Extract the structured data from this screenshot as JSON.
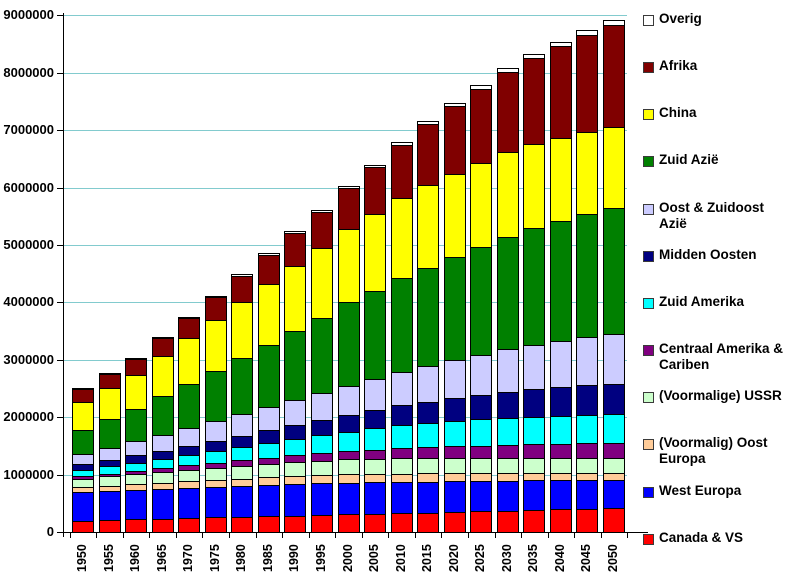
{
  "chart_data": {
    "type": "bar",
    "stacked": true,
    "title": "",
    "categories": [
      "1950",
      "1955",
      "1960",
      "1965",
      "1970",
      "1975",
      "1980",
      "1985",
      "1990",
      "1995",
      "2000",
      "2005",
      "2010",
      "2015",
      "2020",
      "2025",
      "2030",
      "2035",
      "2040",
      "2045",
      "2050"
    ],
    "y_axis": {
      "min": 0,
      "max": 9000000,
      "interval": 1000000,
      "ticks": [
        "0",
        "1000000",
        "2000000",
        "3000000",
        "4000000",
        "5000000",
        "6000000",
        "7000000",
        "8000000",
        "9000000"
      ]
    },
    "grid": {
      "show": true,
      "color": "#82CBCE"
    },
    "axis_color": "#000000",
    "bar_border_color": "#000000",
    "background": "#FFFFFF",
    "legend": {
      "position": "right",
      "items_top_to_bottom": [
        {
          "key": "overig",
          "label": "Overig"
        },
        {
          "key": "afrika",
          "label": "Afrika"
        },
        {
          "key": "china",
          "label": "China"
        },
        {
          "key": "zuid-azie",
          "label": "Zuid Azië"
        },
        {
          "key": "oost-zuidoost-azie",
          "label": "Oost & Zuidoost\nAzië"
        },
        {
          "key": "midden-oosten",
          "label": "Midden Oosten"
        },
        {
          "key": "zuid-amerika",
          "label": "Zuid Amerika"
        },
        {
          "key": "centraal-amerika-cariben",
          "label": "Centraal Amerika &\nCariben"
        },
        {
          "key": "voormalige-ussr",
          "label": "(Voormalige) USSR"
        },
        {
          "key": "voormalig-oost-europa",
          "label": "(Voormalig) Oost\nEuropa"
        },
        {
          "key": "west-europa",
          "label": "West Europa"
        },
        {
          "key": "canada-vs",
          "label": "Canada & VS"
        }
      ]
    },
    "series": [
      {
        "key": "canada-vs",
        "name": "Canada & VS",
        "color": "#FF0000",
        "values": [
          195000,
          207000,
          219000,
          231000,
          243000,
          254000,
          265000,
          276000,
          287000,
          300000,
          314000,
          321000,
          327000,
          339000,
          350000,
          361000,
          372000,
          383000,
          394000,
          404000,
          414000
        ]
      },
      {
        "key": "west-europa",
        "name": "West Europa",
        "color": "#0000FF",
        "values": [
          495000,
          503000,
          511000,
          519000,
          526000,
          532000,
          537000,
          541000,
          544000,
          546000,
          547000,
          545000,
          542000,
          538000,
          533000,
          528000,
          522000,
          516000,
          510000,
          503000,
          495000
        ]
      },
      {
        "key": "voormalig-oost-europa",
        "name": "(Voormalig) Oost Europa",
        "color": "#FFCC99",
        "values": [
          88000,
          96000,
          104000,
          111000,
          118000,
          124000,
          130000,
          135000,
          139000,
          143000,
          146000,
          148000,
          150000,
          148000,
          145000,
          141000,
          137000,
          132000,
          127000,
          122000,
          117000
        ]
      },
      {
        "key": "voormalige-ussr",
        "name": "(Voormalige) USSR",
        "color": "#CCFFCC",
        "values": [
          150000,
          163000,
          176000,
          189000,
          201000,
          213000,
          224000,
          234000,
          243000,
          251000,
          257000,
          261000,
          263000,
          264000,
          265000,
          265000,
          265000,
          265000,
          265000,
          264000,
          264000
        ]
      },
      {
        "key": "centraal-amerika-cariben",
        "name": "Centraal Amerika & Cariben",
        "color": "#800080",
        "values": [
          40000,
          47000,
          55000,
          64000,
          74000,
          85000,
          96000,
          108000,
          120000,
          133000,
          147000,
          161000,
          175000,
          188000,
          200000,
          211000,
          221000,
          231000,
          241000,
          251000,
          260000
        ]
      },
      {
        "key": "zuid-amerika",
        "name": "Zuid Amerika",
        "color": "#00FFFF",
        "values": [
          110000,
          126000,
          144000,
          164000,
          186000,
          209000,
          233000,
          258000,
          284000,
          310000,
          336000,
          369000,
          400000,
          420000,
          445000,
          462000,
          475000,
          483000,
          489000,
          494000,
          498000
        ]
      },
      {
        "key": "midden-oosten",
        "name": "Midden Oosten",
        "color": "#000080",
        "values": [
          100000,
          112000,
          126000,
          141000,
          158000,
          176000,
          196000,
          218000,
          241000,
          266000,
          292000,
          320000,
          350000,
          376000,
          401000,
          425000,
          455000,
          476000,
          496000,
          516000,
          535000
        ]
      },
      {
        "key": "oost-zuidoost-azie",
        "name": "Oost & Zuidoost Azië",
        "color": "#CCCCFF",
        "values": [
          180000,
          210000,
          242000,
          275000,
          309000,
          343000,
          377000,
          411000,
          444000,
          476000,
          512000,
          546000,
          580000,
          620000,
          655000,
          695000,
          740000,
          775000,
          805000,
          835000,
          860000
        ]
      },
      {
        "key": "zuid-azie",
        "name": "Zuid Azië",
        "color": "#008000",
        "values": [
          420000,
          500000,
          560000,
          675000,
          770000,
          870000,
          975000,
          1085000,
          1195000,
          1305000,
          1450000,
          1522000,
          1630000,
          1715000,
          1795000,
          1880000,
          1960000,
          2030000,
          2090000,
          2148000,
          2200000
        ]
      },
      {
        "key": "china",
        "name": "China",
        "color": "#FFFF00",
        "values": [
          490000,
          540000,
          595000,
          690000,
          790000,
          890000,
          980000,
          1060000,
          1140000,
          1210000,
          1270000,
          1340000,
          1400000,
          1430000,
          1450000,
          1465000,
          1470000,
          1465000,
          1455000,
          1440000,
          1420000
        ]
      },
      {
        "key": "afrika",
        "name": "Afrika",
        "color": "#800000",
        "values": [
          230000,
          255000,
          283000,
          316000,
          354000,
          398000,
          448000,
          505000,
          570000,
          643000,
          724000,
          820000,
          930000,
          1075000,
          1190000,
          1290000,
          1400000,
          1500000,
          1595000,
          1685000,
          1770000
        ]
      },
      {
        "key": "overig",
        "name": "Overig",
        "color": "#FFFFFF",
        "values": [
          13000,
          15000,
          17000,
          19000,
          22000,
          24000,
          27000,
          30000,
          33000,
          35000,
          38000,
          41000,
          44000,
          48000,
          52000,
          57000,
          62000,
          68000,
          74000,
          82000,
          90000
        ]
      }
    ]
  }
}
